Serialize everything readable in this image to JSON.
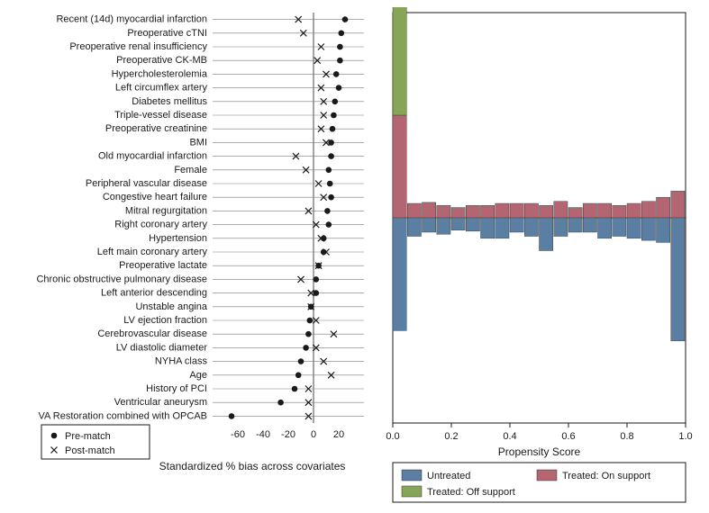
{
  "left_chart": {
    "type": "dotplot",
    "title": "",
    "x_axis_label": "Standardized % bias across covariates",
    "xlim": [
      -80,
      40
    ],
    "xticks": [
      -60,
      -40,
      -20,
      0,
      20
    ],
    "background_color": "#ffffff",
    "grid_color": "#7a7a7a",
    "zero_line_color": "#666666",
    "marker_pre": {
      "shape": "circle",
      "size": 4,
      "color": "#1a1a1a"
    },
    "marker_post": {
      "shape": "x",
      "size": 5,
      "color": "#1a1a1a"
    },
    "covariates": [
      {
        "label": "Recent (14d) myocardial infarction",
        "pre": 25,
        "post": -12
      },
      {
        "label": "Preoperative cTNI",
        "pre": 22,
        "post": -8
      },
      {
        "label": "Preoperative renal insufficiency",
        "pre": 21,
        "post": 6
      },
      {
        "label": "Preoperative CK-MB",
        "pre": 21,
        "post": 3
      },
      {
        "label": "Hypercholesterolemia",
        "pre": 18,
        "post": 10
      },
      {
        "label": "Left circumflex artery",
        "pre": 20,
        "post": 6
      },
      {
        "label": "Diabetes mellitus",
        "pre": 17,
        "post": 8
      },
      {
        "label": "Triple-vessel disease",
        "pre": 16,
        "post": 8
      },
      {
        "label": "Preoperative creatinine",
        "pre": 15,
        "post": 6
      },
      {
        "label": "BMI",
        "pre": 14,
        "post": 10
      },
      {
        "label": "Old myocardial infarction",
        "pre": 14,
        "post": -14
      },
      {
        "label": "Female",
        "pre": 12,
        "post": -6
      },
      {
        "label": "Peripheral vascular disease",
        "pre": 13,
        "post": 4
      },
      {
        "label": "Congestive heart failure",
        "pre": 14,
        "post": 8
      },
      {
        "label": "Mitral regurgitation",
        "pre": 11,
        "post": -4
      },
      {
        "label": "Right coronary artery",
        "pre": 12,
        "post": 2
      },
      {
        "label": "Hypertension",
        "pre": 8,
        "post": 6
      },
      {
        "label": "Left main coronary artery",
        "pre": 8,
        "post": 10
      },
      {
        "label": "Preoperative lactate",
        "pre": 4,
        "post": 4
      },
      {
        "label": "Chronic obstructive pulmonary disease",
        "pre": 2,
        "post": -10
      },
      {
        "label": "Left anterior descending",
        "pre": 2,
        "post": -2
      },
      {
        "label": "Unstable angina",
        "pre": -2,
        "post": -2
      },
      {
        "label": "LV ejection fraction",
        "pre": -3,
        "post": 2
      },
      {
        "label": "Cerebrovascular disease",
        "pre": -4,
        "post": 16
      },
      {
        "label": "LV diastolic diameter",
        "pre": -6,
        "post": 2
      },
      {
        "label": "NYHA class",
        "pre": -10,
        "post": 8
      },
      {
        "label": "Age",
        "pre": -12,
        "post": 14
      },
      {
        "label": "History of PCI",
        "pre": -15,
        "post": -4
      },
      {
        "label": "Ventricular aneurysm",
        "pre": -26,
        "post": -4
      },
      {
        "label": "VA Restoration combined with OPCAB",
        "pre": -65,
        "post": -4
      }
    ],
    "legend": {
      "items": [
        {
          "label": "Pre-match",
          "marker": "circle"
        },
        {
          "label": "Post-match",
          "marker": "x"
        }
      ]
    }
  },
  "right_chart": {
    "type": "histogram-mirror",
    "x_axis_label": "Propensity Score",
    "xlim": [
      0.0,
      1.0
    ],
    "xticks": [
      0.0,
      0.2,
      0.4,
      0.6,
      0.8,
      1.0
    ],
    "y_scale_top": 200,
    "y_scale_bottom": 200,
    "bin_width": 0.05,
    "background_color": "#ffffff",
    "colors": {
      "untreated": "#5a7fa3",
      "treated_on": "#b36671",
      "treated_off": "#87a556"
    },
    "bins": [
      {
        "x": 0.025,
        "untreated": 110,
        "treated_on": 100,
        "treated_off": 110
      },
      {
        "x": 0.075,
        "untreated": 18,
        "treated_on": 14,
        "treated_off": 0
      },
      {
        "x": 0.125,
        "untreated": 14,
        "treated_on": 15,
        "treated_off": 0
      },
      {
        "x": 0.175,
        "untreated": 16,
        "treated_on": 12,
        "treated_off": 0
      },
      {
        "x": 0.225,
        "untreated": 12,
        "treated_on": 10,
        "treated_off": 0
      },
      {
        "x": 0.275,
        "untreated": 13,
        "treated_on": 12,
        "treated_off": 0
      },
      {
        "x": 0.325,
        "untreated": 20,
        "treated_on": 12,
        "treated_off": 0
      },
      {
        "x": 0.375,
        "untreated": 20,
        "treated_on": 14,
        "treated_off": 0
      },
      {
        "x": 0.425,
        "untreated": 14,
        "treated_on": 14,
        "treated_off": 0
      },
      {
        "x": 0.475,
        "untreated": 18,
        "treated_on": 14,
        "treated_off": 0
      },
      {
        "x": 0.525,
        "untreated": 32,
        "treated_on": 12,
        "treated_off": 0
      },
      {
        "x": 0.575,
        "untreated": 18,
        "treated_on": 16,
        "treated_off": 0
      },
      {
        "x": 0.625,
        "untreated": 14,
        "treated_on": 10,
        "treated_off": 0
      },
      {
        "x": 0.675,
        "untreated": 14,
        "treated_on": 14,
        "treated_off": 0
      },
      {
        "x": 0.725,
        "untreated": 20,
        "treated_on": 14,
        "treated_off": 0
      },
      {
        "x": 0.775,
        "untreated": 18,
        "treated_on": 12,
        "treated_off": 0
      },
      {
        "x": 0.825,
        "untreated": 20,
        "treated_on": 14,
        "treated_off": 0
      },
      {
        "x": 0.875,
        "untreated": 22,
        "treated_on": 16,
        "treated_off": 0
      },
      {
        "x": 0.925,
        "untreated": 24,
        "treated_on": 20,
        "treated_off": 0
      },
      {
        "x": 0.975,
        "untreated": 120,
        "treated_on": 26,
        "treated_off": 0
      }
    ],
    "legend": {
      "items": [
        {
          "label": "Untreated",
          "color": "#5a7fa3"
        },
        {
          "label": "Treated: On support",
          "color": "#b36671"
        },
        {
          "label": "Treated: Off support",
          "color": "#87a556"
        }
      ]
    }
  }
}
